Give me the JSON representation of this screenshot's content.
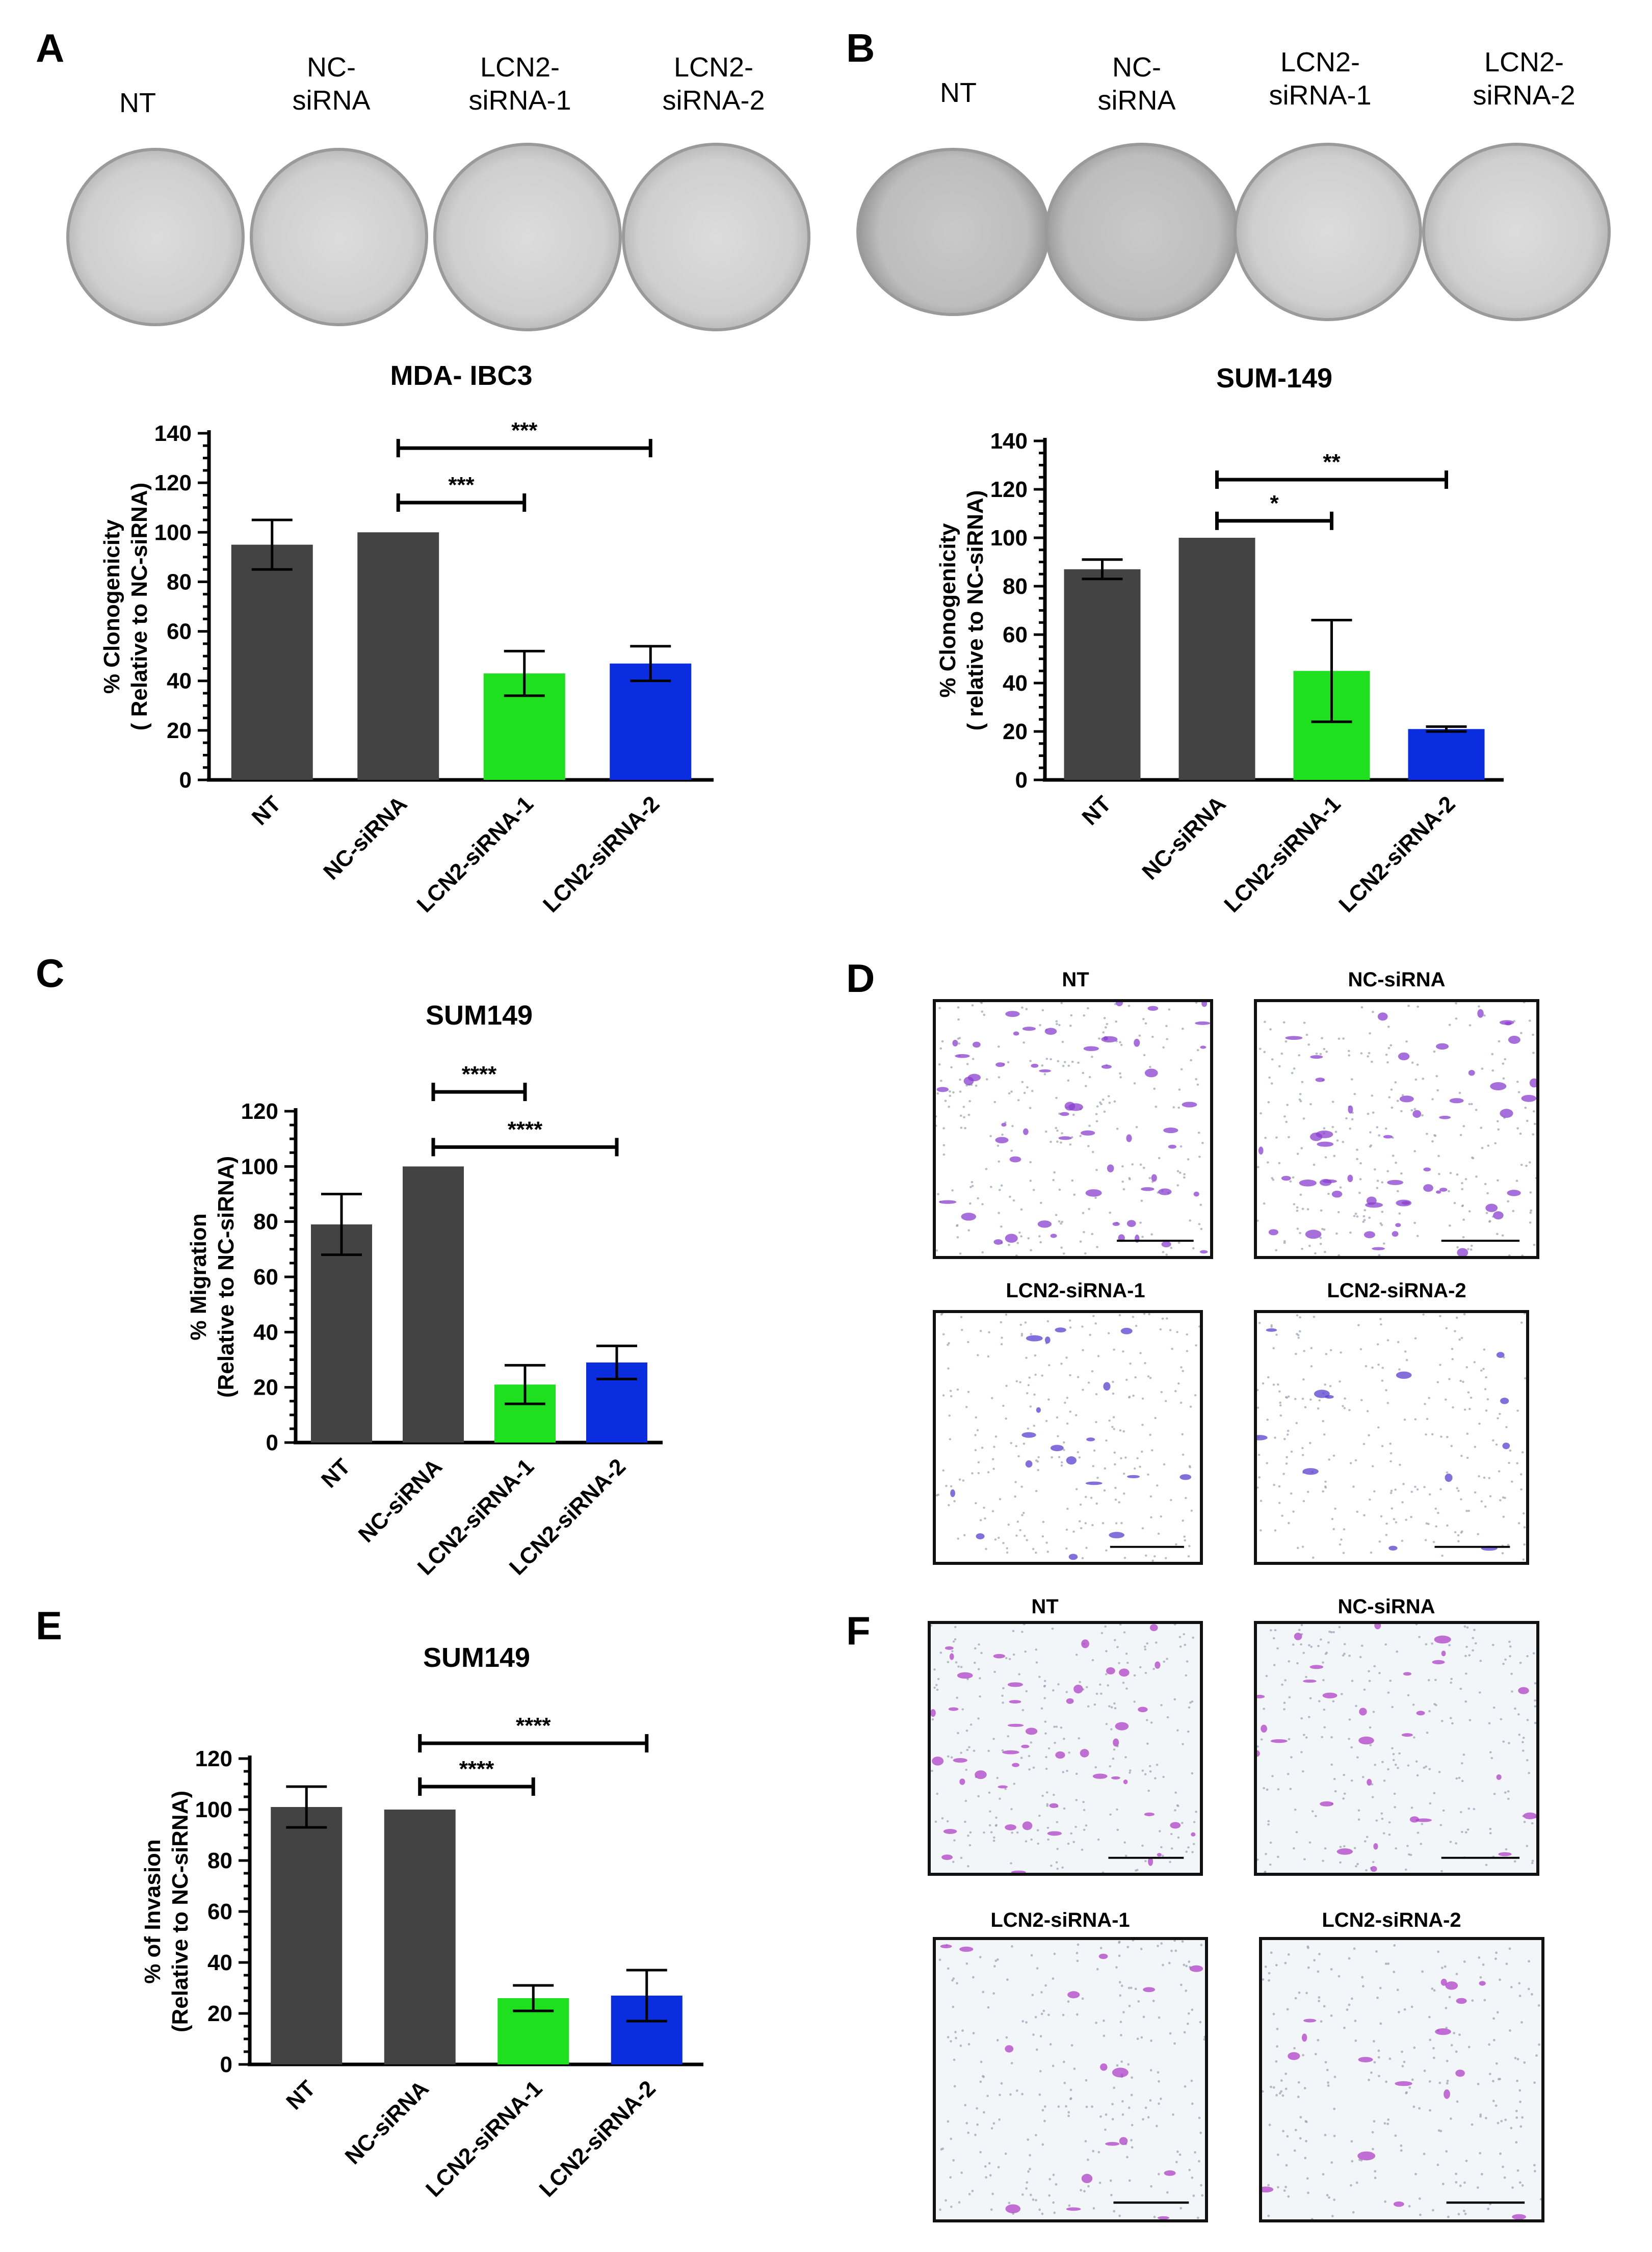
{
  "panels": {
    "A": {
      "letter": "A",
      "dish_labels": [
        "NT",
        "NC-\nsiRNA",
        "LCN2-\nsiRNA-1",
        "LCN2-\nsiRNA-2"
      ]
    },
    "B": {
      "letter": "B",
      "dish_labels": [
        "NT",
        "NC-\nsiRNA",
        "LCN2-\nsiRNA-1",
        "LCN2-\nsiRNA-2"
      ]
    },
    "C": {
      "letter": "C"
    },
    "D": {
      "letter": "D",
      "image_labels": [
        "NT",
        "NC-siRNA",
        "LCN2-siRNA-1",
        "LCN2-siRNA-2"
      ]
    },
    "E": {
      "letter": "E"
    },
    "F": {
      "letter": "F",
      "image_labels": [
        "NT",
        "NC-siRNA",
        "LCN2-siRNA-1",
        "LCN2-siRNA-2"
      ]
    }
  },
  "colors": {
    "dark_bar": "#434343",
    "green_bar": "#1fe01f",
    "blue_bar": "#0a2de0",
    "stain_purple": "#8a3fcf",
    "stain_violet": "#5a3fd0",
    "stain_magenta": "#b040c8"
  },
  "chart_data": [
    {
      "id": "A",
      "type": "bar",
      "title": "MDA- IBC3",
      "ylabel": "% Clonogenicity\n( Relative to NC-siRNA)",
      "xlabel": "",
      "categories": [
        "NT",
        "NC-siRNA",
        "LCN2-siRNA-1",
        "LCN2-siRNA-2"
      ],
      "values": [
        95,
        100,
        43,
        47
      ],
      "errors": [
        10,
        0,
        9,
        7
      ],
      "colors": [
        "#434343",
        "#434343",
        "#1fe01f",
        "#0a2de0"
      ],
      "ylim": [
        0,
        140
      ],
      "yticks": [
        0,
        20,
        40,
        60,
        80,
        100,
        120,
        140
      ],
      "significance": [
        {
          "from": 1,
          "to": 2,
          "label": "***",
          "y": 112
        },
        {
          "from": 1,
          "to": 3,
          "label": "***",
          "y": 134
        }
      ]
    },
    {
      "id": "B",
      "type": "bar",
      "title": "SUM-149",
      "ylabel": "% Clonogenicity\n( relative to NC-siRNA)",
      "xlabel": "",
      "categories": [
        "NT",
        "NC-siRNA",
        "LCN2-siRNA-1",
        "LCN2-siRNA-2"
      ],
      "values": [
        87,
        100,
        45,
        21
      ],
      "errors": [
        4,
        0,
        21,
        1
      ],
      "colors": [
        "#434343",
        "#434343",
        "#1fe01f",
        "#0a2de0"
      ],
      "ylim": [
        0,
        140
      ],
      "yticks": [
        0,
        20,
        40,
        60,
        80,
        100,
        120,
        140
      ],
      "significance": [
        {
          "from": 1,
          "to": 2,
          "label": "*",
          "y": 107
        },
        {
          "from": 1,
          "to": 3,
          "label": "**",
          "y": 124
        }
      ]
    },
    {
      "id": "C",
      "type": "bar",
      "title": "SUM149",
      "ylabel": "% Migration\n(Relative to NC-siRNA)",
      "xlabel": "",
      "categories": [
        "NT",
        "NC-siRNA",
        "LCN2-siRNA-1",
        "LCN2-siRNA-2"
      ],
      "values": [
        79,
        100,
        21,
        29
      ],
      "errors": [
        11,
        0,
        7,
        6
      ],
      "colors": [
        "#434343",
        "#434343",
        "#1fe01f",
        "#0a2de0"
      ],
      "ylim": [
        0,
        120
      ],
      "yticks": [
        0,
        20,
        40,
        60,
        80,
        100,
        120
      ],
      "significance": [
        {
          "from": 1,
          "to": 2,
          "label": "****",
          "y": 127
        },
        {
          "from": 1,
          "to": 3,
          "label": "****",
          "y": 107
        }
      ]
    },
    {
      "id": "E",
      "type": "bar",
      "title": "SUM149",
      "ylabel": "% of Invasion\n(Relative to NC-siRNA)",
      "xlabel": "",
      "categories": [
        "NT",
        "NC-siRNA",
        "LCN2-siRNA-1",
        "LCN2-siRNA-2"
      ],
      "values": [
        101,
        100,
        26,
        27
      ],
      "errors": [
        8,
        0,
        5,
        10
      ],
      "colors": [
        "#434343",
        "#434343",
        "#1fe01f",
        "#0a2de0"
      ],
      "ylim": [
        0,
        120
      ],
      "yticks": [
        0,
        20,
        40,
        60,
        80,
        100,
        120
      ],
      "significance": [
        {
          "from": 1,
          "to": 2,
          "label": "****",
          "y": 109
        },
        {
          "from": 1,
          "to": 3,
          "label": "****",
          "y": 126
        }
      ]
    }
  ]
}
